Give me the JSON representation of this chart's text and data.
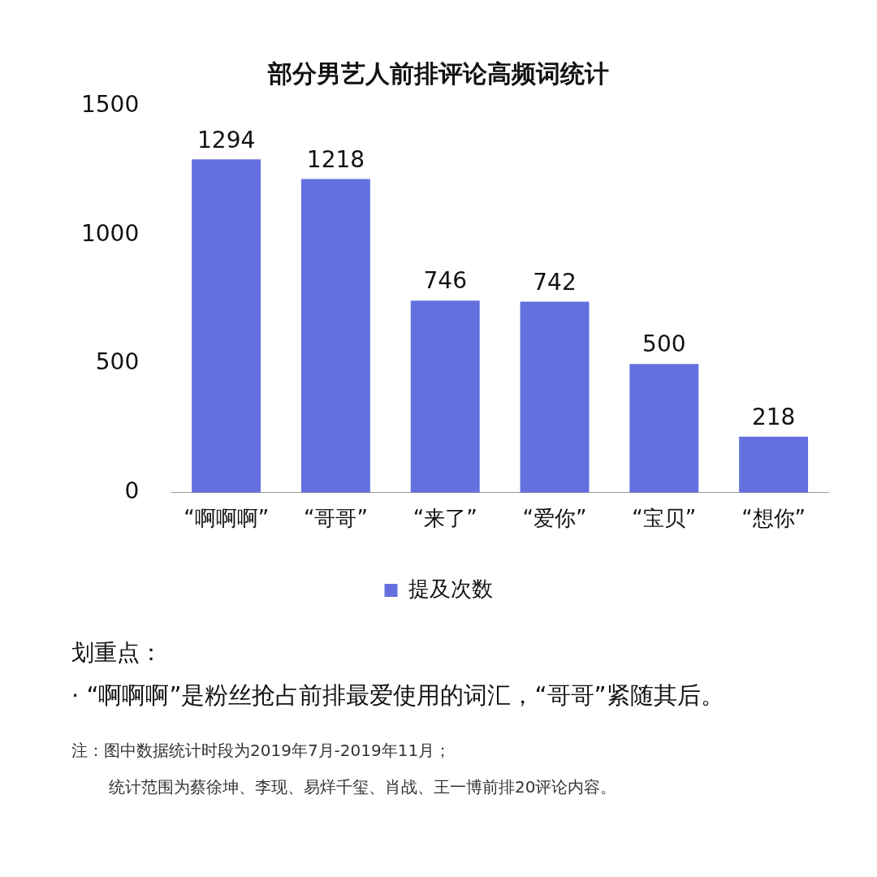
{
  "chart_data": {
    "type": "bar",
    "title": "部分男艺人前排评论高频词统计",
    "categories": [
      "“啊啊啊”",
      "“哥哥”",
      "“来了”",
      "“爱你”",
      "“宝贝”",
      "“想你”"
    ],
    "series": [
      {
        "name": "提及次数",
        "color": "#6370de",
        "values": [
          1294,
          1218,
          746,
          742,
          500,
          218
        ]
      }
    ],
    "ylim": [
      0,
      1500
    ],
    "yticks": [
      0,
      500,
      1000,
      1500
    ],
    "legend": "bottom",
    "data_labels": true,
    "annotations": [
      "划重点：",
      "· “啊啊啊”是粉丝抢占前排最爱使用的词汇，“哥哥”紧随其后。",
      "注：图中数据统计时段为2019年7月-2019年11月；",
      "统计范围为蔡徐坤、李现、易烊千玺、肖战、王一博前排20评论内容。"
    ]
  }
}
